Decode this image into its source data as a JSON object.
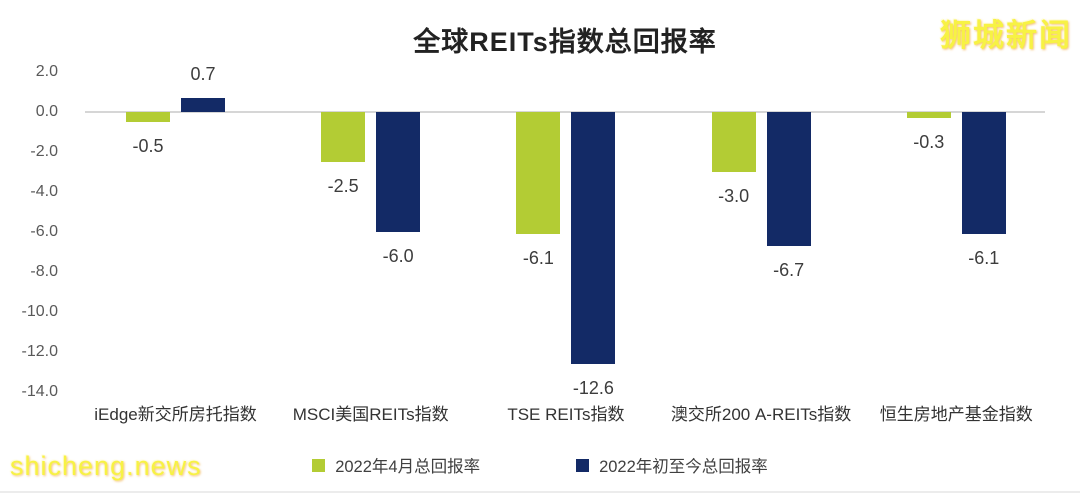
{
  "watermarks": {
    "top_right": "狮城新闻",
    "bottom_left": "shicheng.news",
    "color": "#f7f244"
  },
  "chart_data": {
    "type": "bar",
    "title": "全球REITs指数总回报率",
    "categories": [
      "iEdge新交所房托指数",
      "MSCI美国REITs指数",
      "TSE REITs指数",
      "澳交所200 A-REITs指数",
      "恒生房地产基金指数"
    ],
    "series": [
      {
        "name": "2022年4月总回报率",
        "color": "#b3cc34",
        "values": [
          -0.5,
          -2.5,
          -6.1,
          -3.0,
          -0.3
        ]
      },
      {
        "name": "2022年初至今总回报率",
        "color": "#132a66",
        "values": [
          0.7,
          -6.0,
          -12.6,
          -6.7,
          -6.1
        ]
      }
    ],
    "y_ticks": [
      2.0,
      0.0,
      -2.0,
      -4.0,
      -6.0,
      -8.0,
      -10.0,
      -12.0,
      -14.0
    ],
    "ylim": [
      -14.0,
      2.0
    ],
    "grid": "zero-line-only",
    "legend_position": "bottom",
    "value_labels": true,
    "value_label_color": "#3d3d3d",
    "axis_label_color": "#595959"
  }
}
